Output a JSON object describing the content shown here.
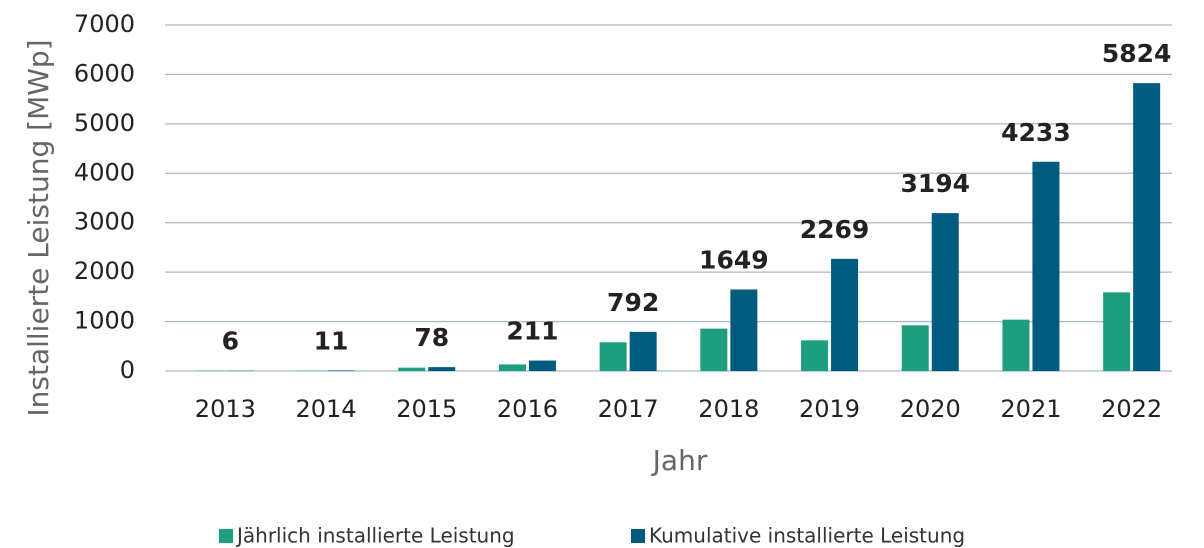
{
  "chart_data": {
    "type": "bar",
    "xlabel": "Jahr",
    "ylabel": "Installierte Leistung [MWp]",
    "categories": [
      "2013",
      "2014",
      "2015",
      "2016",
      "2017",
      "2018",
      "2019",
      "2020",
      "2021",
      "2022"
    ],
    "series": [
      {
        "name": "Jährlich installierte Leistung",
        "color": "#1f9e7f",
        "values": [
          6,
          5,
          67,
          133,
          581,
          857,
          620,
          925,
          1039,
          1591
        ]
      },
      {
        "name": "Kumulative installierte Leistung",
        "color": "#005b7f",
        "values": [
          6,
          11,
          78,
          211,
          792,
          1649,
          2269,
          3194,
          4233,
          5824
        ]
      }
    ],
    "ylim": [
      0,
      7000
    ],
    "yticks": [
      0,
      1000,
      2000,
      3000,
      4000,
      5000,
      6000,
      7000
    ],
    "grid": true,
    "legend": "bottom"
  }
}
